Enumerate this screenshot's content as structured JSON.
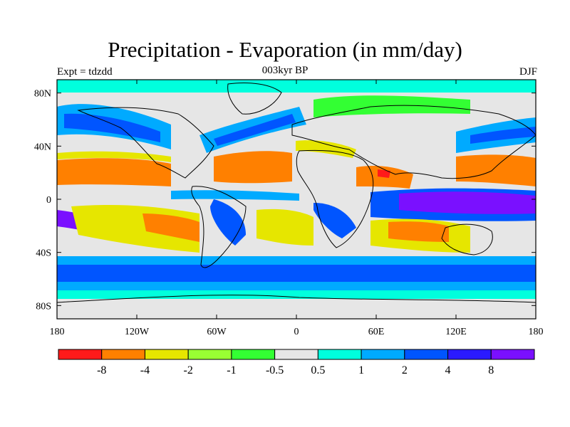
{
  "header": {
    "title": "Precipitation - Evaporation (in mm/day)",
    "subtitle": "003kyr BP",
    "left_label": "Expt = tdzdd",
    "right_label": "DJF"
  },
  "map": {
    "projection": "cylindrical equidistant",
    "lon_range": [
      -180,
      180
    ],
    "lat_range": [
      -90,
      90
    ],
    "y_ticks": [
      {
        "lat": 80,
        "label": "80N"
      },
      {
        "lat": 40,
        "label": "40N"
      },
      {
        "lat": 0,
        "label": "0"
      },
      {
        "lat": -40,
        "label": "40S"
      },
      {
        "lat": -80,
        "label": "80S"
      }
    ],
    "x_ticks": [
      {
        "lon": -180,
        "label": "180"
      },
      {
        "lon": -120,
        "label": "120W"
      },
      {
        "lon": -60,
        "label": "60W"
      },
      {
        "lon": 0,
        "label": "0"
      },
      {
        "lon": 60,
        "label": "60E"
      },
      {
        "lon": 120,
        "label": "120E"
      },
      {
        "lon": 180,
        "label": "180"
      }
    ]
  },
  "colorbar": {
    "colors": [
      "#ff1a1a",
      "#ff8000",
      "#e6e600",
      "#99ff33",
      "#33ff33",
      "#e6e6e6",
      "#00ffdd",
      "#00aaff",
      "#0055ff",
      "#2a1aff",
      "#7a10ff"
    ],
    "labels": [
      "-8",
      "-4",
      "-2",
      "-1",
      "-0.5",
      "0.5",
      "1",
      "2",
      "4",
      "8"
    ]
  },
  "colors": {
    "red": "#ff1a1a",
    "orange": "#ff8000",
    "yellow": "#e6e600",
    "lime": "#99ff33",
    "green": "#33ff33",
    "grey": "#e6e6e6",
    "cyan": "#00ffdd",
    "sky": "#00aaff",
    "blue": "#0055ff",
    "indigo": "#2a1aff",
    "violet": "#7a10ff"
  }
}
